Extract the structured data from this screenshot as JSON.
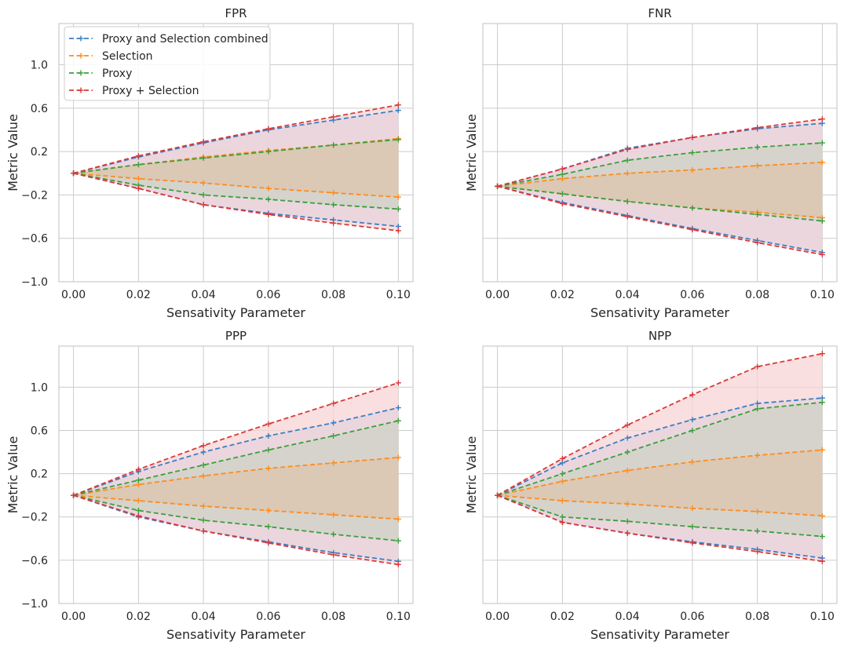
{
  "chart_data": {
    "type": "line",
    "grid": true,
    "shared_y": true,
    "legend_placement": "top-left (FPR panel)",
    "x": [
      0.0,
      0.02,
      0.04,
      0.06,
      0.08,
      0.1
    ],
    "x_tick_labels": [
      "0.00",
      "0.02",
      "0.04",
      "0.06",
      "0.08",
      "0.10"
    ],
    "y_tick_values": [
      -1.0,
      -0.6,
      -0.2,
      0.2,
      0.6,
      1.0
    ],
    "y_tick_labels": [
      "−1.0",
      "−0.6",
      "−0.2",
      "0.2",
      "0.6",
      "1.0"
    ],
    "xlim": [
      -0.0045,
      0.1045
    ],
    "ylim": [
      -1.0,
      1.38
    ],
    "xlabel": "Sensativity Parameter",
    "ylabel": "Metric Value",
    "series_names": [
      "Proxy and Selection combined",
      "Selection",
      "Proxy",
      "Proxy + Selection"
    ],
    "colors": {
      "Proxy and Selection combined": "#3b7fc4",
      "Selection": "#ff8c1a",
      "Proxy": "#3aa03a",
      "Proxy + Selection": "#d9393a",
      "fill_red": "#f7d4d4",
      "fill_purple": "#e6d3dd",
      "fill_gray": "#cfd2c6",
      "fill_brown": "#dcc4ad"
    },
    "panels": [
      {
        "title": "FPR",
        "series": [
          {
            "name": "Proxy and Selection combined",
            "upper": [
              0.0,
              0.15,
              0.28,
              0.4,
              0.49,
              0.58
            ],
            "lower": [
              0.0,
              -0.14,
              -0.29,
              -0.37,
              -0.43,
              -0.49
            ]
          },
          {
            "name": "Selection",
            "upper": [
              0.0,
              0.08,
              0.15,
              0.21,
              0.26,
              0.32
            ],
            "lower": [
              0.0,
              -0.05,
              -0.09,
              -0.14,
              -0.18,
              -0.22
            ]
          },
          {
            "name": "Proxy",
            "upper": [
              0.0,
              0.08,
              0.14,
              0.2,
              0.26,
              0.31
            ],
            "lower": [
              0.0,
              -0.11,
              -0.2,
              -0.24,
              -0.29,
              -0.33
            ]
          },
          {
            "name": "Proxy + Selection",
            "upper": [
              0.0,
              0.16,
              0.29,
              0.41,
              0.52,
              0.63
            ],
            "lower": [
              0.0,
              -0.14,
              -0.29,
              -0.38,
              -0.46,
              -0.53
            ]
          }
        ]
      },
      {
        "title": "FNR",
        "series": [
          {
            "name": "Proxy and Selection combined",
            "upper": [
              -0.12,
              0.04,
              0.23,
              0.33,
              0.41,
              0.46
            ],
            "lower": [
              -0.12,
              -0.27,
              -0.39,
              -0.51,
              -0.62,
              -0.73
            ]
          },
          {
            "name": "Selection",
            "upper": [
              -0.12,
              -0.05,
              0.0,
              0.03,
              0.07,
              0.1
            ],
            "lower": [
              -0.12,
              -0.19,
              -0.26,
              -0.32,
              -0.36,
              -0.41
            ]
          },
          {
            "name": "Proxy",
            "upper": [
              -0.12,
              -0.01,
              0.12,
              0.19,
              0.24,
              0.28
            ],
            "lower": [
              -0.12,
              -0.19,
              -0.26,
              -0.32,
              -0.38,
              -0.44
            ]
          },
          {
            "name": "Proxy + Selection",
            "upper": [
              -0.12,
              0.04,
              0.22,
              0.33,
              0.42,
              0.5
            ],
            "lower": [
              -0.12,
              -0.28,
              -0.4,
              -0.52,
              -0.64,
              -0.75
            ]
          }
        ]
      },
      {
        "title": "PPP",
        "series": [
          {
            "name": "Proxy and Selection combined",
            "upper": [
              0.0,
              0.22,
              0.4,
              0.55,
              0.67,
              0.81
            ],
            "lower": [
              0.0,
              -0.2,
              -0.33,
              -0.43,
              -0.53,
              -0.61
            ]
          },
          {
            "name": "Selection",
            "upper": [
              0.0,
              0.1,
              0.18,
              0.25,
              0.3,
              0.35
            ],
            "lower": [
              0.0,
              -0.05,
              -0.1,
              -0.14,
              -0.18,
              -0.22
            ]
          },
          {
            "name": "Proxy",
            "upper": [
              0.0,
              0.14,
              0.28,
              0.42,
              0.55,
              0.69
            ],
            "lower": [
              0.0,
              -0.14,
              -0.23,
              -0.29,
              -0.36,
              -0.42
            ]
          },
          {
            "name": "Proxy + Selection",
            "upper": [
              0.0,
              0.24,
              0.46,
              0.66,
              0.85,
              1.04
            ],
            "lower": [
              0.0,
              -0.19,
              -0.33,
              -0.44,
              -0.55,
              -0.64
            ]
          }
        ]
      },
      {
        "title": "NPP",
        "series": [
          {
            "name": "Proxy and Selection combined",
            "upper": [
              0.0,
              0.3,
              0.53,
              0.7,
              0.85,
              0.9
            ],
            "lower": [
              0.0,
              -0.25,
              -0.35,
              -0.43,
              -0.5,
              -0.58
            ]
          },
          {
            "name": "Selection",
            "upper": [
              0.0,
              0.13,
              0.23,
              0.31,
              0.37,
              0.42
            ],
            "lower": [
              0.0,
              -0.05,
              -0.08,
              -0.12,
              -0.15,
              -0.19
            ]
          },
          {
            "name": "Proxy",
            "upper": [
              0.0,
              0.2,
              0.4,
              0.6,
              0.8,
              0.86
            ],
            "lower": [
              0.0,
              -0.2,
              -0.24,
              -0.29,
              -0.33,
              -0.38
            ]
          },
          {
            "name": "Proxy + Selection",
            "upper": [
              0.0,
              0.34,
              0.65,
              0.93,
              1.19,
              1.31
            ],
            "lower": [
              0.0,
              -0.25,
              -0.35,
              -0.44,
              -0.52,
              -0.61
            ]
          }
        ]
      }
    ]
  }
}
